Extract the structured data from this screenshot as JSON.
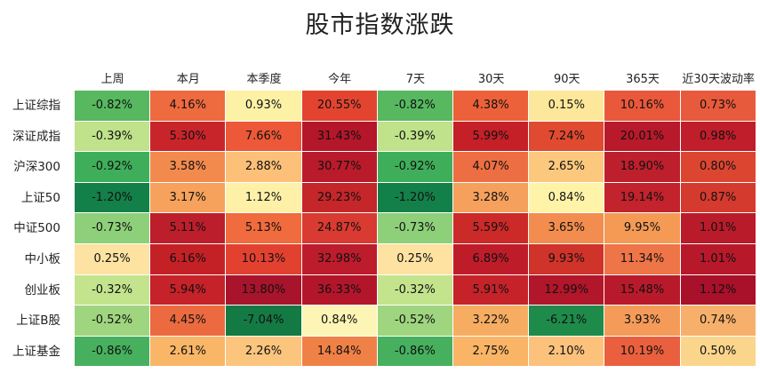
{
  "chart_data": {
    "type": "heatmap",
    "title": "股市指数涨跌",
    "columns": [
      "上周",
      "本月",
      "本季度",
      "今年",
      "7天",
      "30天",
      "90天",
      "365天",
      "近30天波动率"
    ],
    "rows": [
      "上证综指",
      "深证成指",
      "沪深300",
      "上证50",
      "中证500",
      "中小板",
      "创业板",
      "上证B股",
      "上证基金"
    ],
    "values": [
      [
        "-0.82%",
        "4.16%",
        "0.93%",
        "20.55%",
        "-0.82%",
        "4.38%",
        "0.15%",
        "10.16%",
        "0.73%"
      ],
      [
        "-0.39%",
        "5.30%",
        "7.66%",
        "31.43%",
        "-0.39%",
        "5.99%",
        "7.24%",
        "20.01%",
        "0.98%"
      ],
      [
        "-0.92%",
        "3.58%",
        "2.88%",
        "30.77%",
        "-0.92%",
        "4.07%",
        "2.65%",
        "18.90%",
        "0.80%"
      ],
      [
        "-1.20%",
        "3.17%",
        "1.12%",
        "29.23%",
        "-1.20%",
        "3.28%",
        "0.84%",
        "19.14%",
        "0.87%"
      ],
      [
        "-0.73%",
        "5.11%",
        "5.13%",
        "24.87%",
        "-0.73%",
        "5.59%",
        "3.65%",
        "9.95%",
        "1.01%"
      ],
      [
        "0.25%",
        "6.16%",
        "10.13%",
        "32.98%",
        "0.25%",
        "6.89%",
        "9.93%",
        "11.34%",
        "1.01%"
      ],
      [
        "-0.32%",
        "5.94%",
        "13.80%",
        "36.33%",
        "-0.32%",
        "5.91%",
        "12.99%",
        "15.48%",
        "1.12%"
      ],
      [
        "-0.52%",
        "4.45%",
        "-7.04%",
        "0.84%",
        "-0.52%",
        "3.22%",
        "-6.21%",
        "3.93%",
        "0.74%"
      ],
      [
        "-0.86%",
        "2.61%",
        "2.26%",
        "14.84%",
        "-0.86%",
        "2.75%",
        "2.10%",
        "10.19%",
        "0.50%"
      ]
    ],
    "colors": [
      [
        "#57b860",
        "#ee6a3f",
        "#fdf1a6",
        "#e34430",
        "#57b860",
        "#ec613a",
        "#fde79a",
        "#e9583a",
        "#e85a3c"
      ],
      [
        "#bfe28a",
        "#c8252b",
        "#ec5838",
        "#b4162a",
        "#bfe28a",
        "#c52027",
        "#e04a30",
        "#b81a2b",
        "#c01e2a"
      ],
      [
        "#3fae5a",
        "#f38a4d",
        "#fcc078",
        "#ba1b2b",
        "#3fae5a",
        "#ed6e42",
        "#fcc87d",
        "#be1f2d",
        "#dc4631"
      ],
      [
        "#13804a",
        "#f6a25c",
        "#fff0a8",
        "#c52629",
        "#13804a",
        "#f5a05c",
        "#fff3a8",
        "#c2232c",
        "#d53a2e"
      ],
      [
        "#8ed07a",
        "#bd1e2c",
        "#f06b3d",
        "#d93a31",
        "#8ed07a",
        "#cb2a29",
        "#f28d4f",
        "#f49a55",
        "#b91b2b"
      ],
      [
        "#fde2a1",
        "#c42127",
        "#e34130",
        "#bc1c2c",
        "#fde2a1",
        "#bf1c2a",
        "#cf3329",
        "#ee7548",
        "#b7192b"
      ],
      [
        "#c3e48c",
        "#c52229",
        "#a8142b",
        "#b3162b",
        "#c3e48c",
        "#c52329",
        "#b2162a",
        "#b91a2b",
        "#a9102a"
      ],
      [
        "#a0d57f",
        "#ec6a40",
        "#147a44",
        "#fdf5b5",
        "#a0d57f",
        "#f6ad62",
        "#1e8b4a",
        "#f59b59",
        "#f6b06b"
      ],
      [
        "#46b05e",
        "#fab667",
        "#fcc57e",
        "#f08146",
        "#46b05e",
        "#f9b466",
        "#fcc27c",
        "#ea603e",
        "#fcd58c"
      ]
    ]
  }
}
